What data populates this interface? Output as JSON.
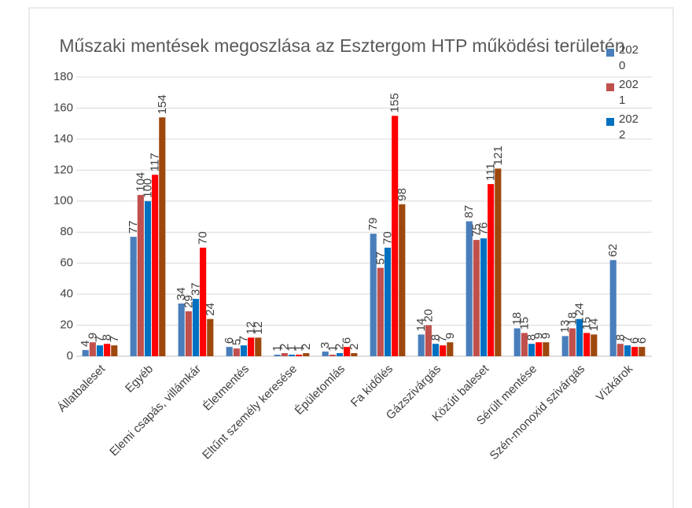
{
  "chart_data": {
    "type": "bar",
    "title": "Műszaki mentések megoszlása az Esztergom HTP működési területén",
    "categories": [
      "Állatbaleset",
      "Egyéb",
      "Elemi csapás, villámkár",
      "Életmentés",
      "Eltűnt személy keresése",
      "Épületomlás",
      "Fa kidőlés",
      "Gázszivárgás",
      "Közúti baleset",
      "Sérült mentése",
      "Szén-monoxid szivárgás",
      "Vízkárok"
    ],
    "series": [
      {
        "name": "2020",
        "color": "#4a7ebb",
        "values": [
          4,
          77,
          34,
          6,
          1,
          3,
          79,
          14,
          87,
          18,
          13,
          62
        ]
      },
      {
        "name": "2021",
        "color": "#c0504d",
        "values": [
          9,
          104,
          29,
          5,
          2,
          1,
          57,
          20,
          75,
          15,
          18,
          8
        ]
      },
      {
        "name": "2022",
        "color": "#0070c0",
        "values": [
          7,
          100,
          37,
          7,
          1,
          2,
          70,
          8,
          76,
          8,
          24,
          7
        ]
      },
      {
        "color": "#ff0000",
        "values": [
          8,
          117,
          70,
          12,
          1,
          6,
          155,
          7,
          111,
          9,
          15,
          6
        ]
      },
      {
        "color": "#9e480e",
        "values": [
          7,
          154,
          24,
          12,
          2,
          2,
          98,
          9,
          121,
          9,
          14,
          6
        ]
      }
    ],
    "ylim": [
      0,
      180
    ],
    "yticks": [
      0,
      20,
      40,
      60,
      80,
      100,
      120,
      140,
      160,
      180
    ],
    "grid": true,
    "legend": "right"
  }
}
